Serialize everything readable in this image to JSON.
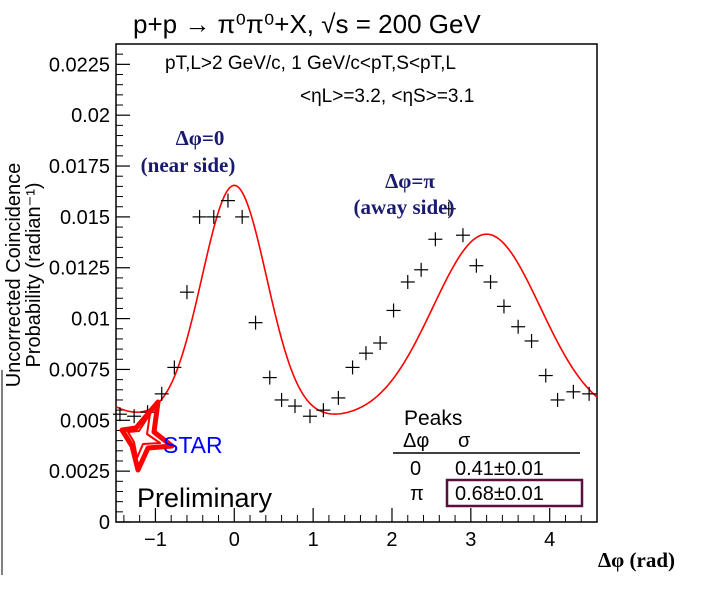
{
  "chart_data": {
    "type": "scatter",
    "title": "p+p → π⁰π⁰+X, √s = 200 GeV",
    "cuts_line1": "pT,L>2 GeV/c,  1 GeV/c<pT,S<pT,L",
    "cuts_line2": "<ηL>=3.2, <ηS>=3.1",
    "xlabel": "Δφ (rad)",
    "ylabel_line1": "Uncorrected Coincidence",
    "ylabel_line2": "Probability (radian⁻¹)",
    "xlim": [
      -1.5,
      4.6
    ],
    "ylim": [
      0,
      0.0235
    ],
    "x_ticks": [
      -1,
      0,
      1,
      2,
      3,
      4
    ],
    "x_tick_labels": [
      "−1",
      "0",
      "1",
      "2",
      "3",
      "4"
    ],
    "y_ticks": [
      0,
      0.0025,
      0.005,
      0.0075,
      0.01,
      0.0125,
      0.015,
      0.0175,
      0.02,
      0.0225
    ],
    "y_tick_labels": [
      "0",
      "0.0025",
      "0.005",
      "0.0075",
      "0.01",
      "0.0125",
      "0.015",
      "0.0175",
      "0.02",
      "0.0225"
    ],
    "points": {
      "x": [
        -1.45,
        -1.27,
        -1.1,
        -0.92,
        -0.76,
        -0.6,
        -0.44,
        -0.26,
        -0.08,
        0.1,
        0.27,
        0.45,
        0.6,
        0.77,
        0.96,
        1.13,
        1.32,
        1.5,
        1.67,
        1.85,
        2.02,
        2.2,
        2.37,
        2.55,
        2.72,
        2.9,
        3.07,
        3.25,
        3.42,
        3.6,
        3.77,
        3.95,
        4.1,
        4.3,
        4.5
      ],
      "y": [
        0.0053,
        0.0052,
        0.0054,
        0.0063,
        0.0076,
        0.0113,
        0.015,
        0.015,
        0.0158,
        0.015,
        0.0098,
        0.0071,
        0.006,
        0.0057,
        0.0052,
        0.0055,
        0.0061,
        0.0076,
        0.0083,
        0.0088,
        0.0104,
        0.0118,
        0.0124,
        0.0139,
        0.0154,
        0.0141,
        0.0126,
        0.0118,
        0.0106,
        0.0096,
        0.0089,
        0.0072,
        0.006,
        0.0064,
        0.0063
      ]
    },
    "fit": {
      "name": "fit",
      "color": "#ff0000",
      "pedestal": 0.00505,
      "peaks": [
        {
          "mean": 0,
          "amplitude": 0.0115,
          "sigma": 0.41
        },
        {
          "mean": 3.2,
          "amplitude": 0.0091,
          "sigma": 0.68
        }
      ]
    },
    "annotations": {
      "near_line1": "Δφ=0",
      "near_line2": "(near side)",
      "away_line1": "Δφ=π",
      "away_line2": "(away side)",
      "annotation_color": "#1a1a6e"
    },
    "peaks_table": {
      "title": "Peaks",
      "col1_header": "Δφ",
      "col2_header": "σ",
      "rows": [
        {
          "dphi": "0",
          "sigma": "0.41±0.01"
        },
        {
          "dphi": "π",
          "sigma": "0.68±0.01"
        }
      ],
      "highlight_color": "#5a0f3c"
    },
    "logo": {
      "text": "STAR",
      "star_color": "#ff0000",
      "text_color": "#0000ff"
    },
    "preliminary": "Preliminary"
  }
}
